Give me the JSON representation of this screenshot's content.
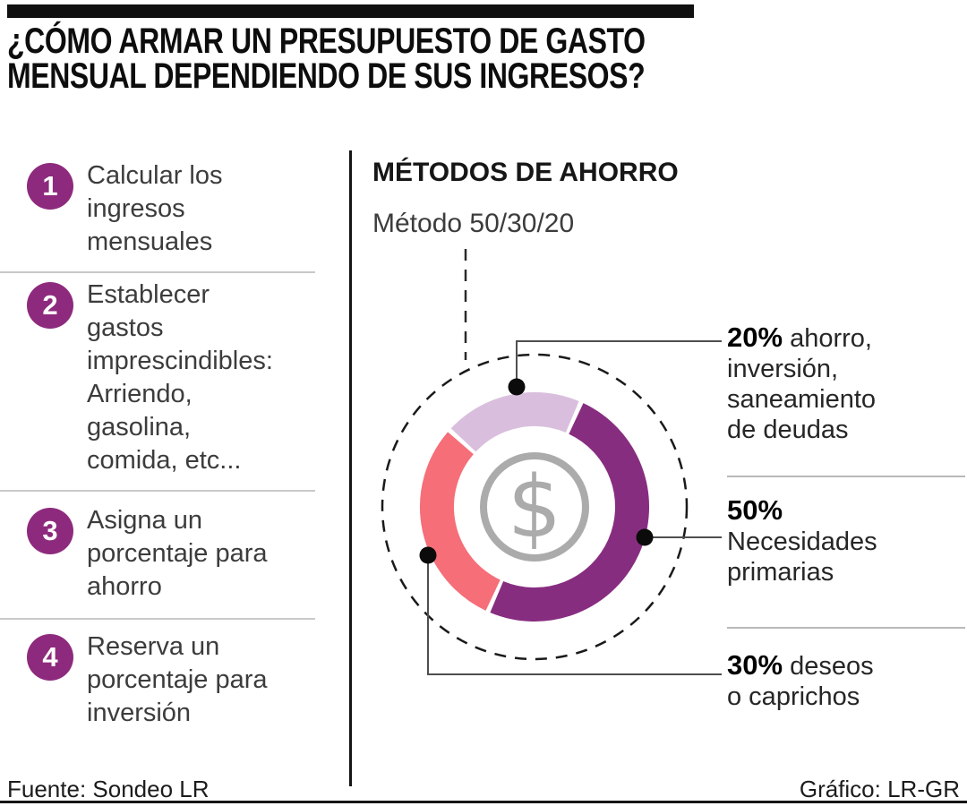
{
  "title": "¿CÓMO ARMAR UN PRESUPUESTO DE GASTO\nMENSUAL DEPENDIENDO DE SUS INGRESOS?",
  "steps": [
    {
      "number": "1",
      "text": "Calcular los\ningresos\nmensuales"
    },
    {
      "number": "2",
      "text": "Establecer\ngastos\nimprescindibles:\nArriendo,\ngasolina,\ncomida, etc..."
    },
    {
      "number": "3",
      "text": "Asigna un\nporcentaje para\nahorro"
    },
    {
      "number": "4",
      "text": "Reserva un\nporcentaje para\ninversión"
    }
  ],
  "chart": {
    "section_title": "MÉTODOS DE AHORRO",
    "subtitle": "Método 50/30/20",
    "center_symbol": "$",
    "center_icon": "dollar-coin-icon"
  },
  "chart_data": {
    "type": "pie",
    "donut": true,
    "title": "Método 50/30/20",
    "start_angle_deg": 138,
    "direction": "clockwise",
    "slices": [
      {
        "label": "ahorro, inversión, saneamiento de deudas",
        "pct": 20,
        "color": "#D9BFDD"
      },
      {
        "label": "Necesidades primarias",
        "pct": 50,
        "color": "#872D80"
      },
      {
        "label": "deseos o caprichos",
        "pct": 30,
        "color": "#F56E78"
      }
    ]
  },
  "labels": {
    "l20": {
      "pct": "20%",
      "first_rest": " ahorro,",
      "more": "inversión,\nsaneamiento\nde deudas"
    },
    "l50": {
      "pct": "50%",
      "more": "Necesidades\nprimarias"
    },
    "l30": {
      "pct": "30%",
      "first_rest": " deseos",
      "more": "o caprichos"
    }
  },
  "footer": {
    "source": "Fuente: Sondeo LR",
    "credit": "Gráfico: LR-GR"
  },
  "colors": {
    "step_badge": "#8E2A7D",
    "donut_purple": "#872D80",
    "donut_coral": "#F56E78",
    "donut_lavender": "#D9BFDD",
    "icon_gray": "#ABABAB",
    "callout_line": "#4f4f4f"
  }
}
